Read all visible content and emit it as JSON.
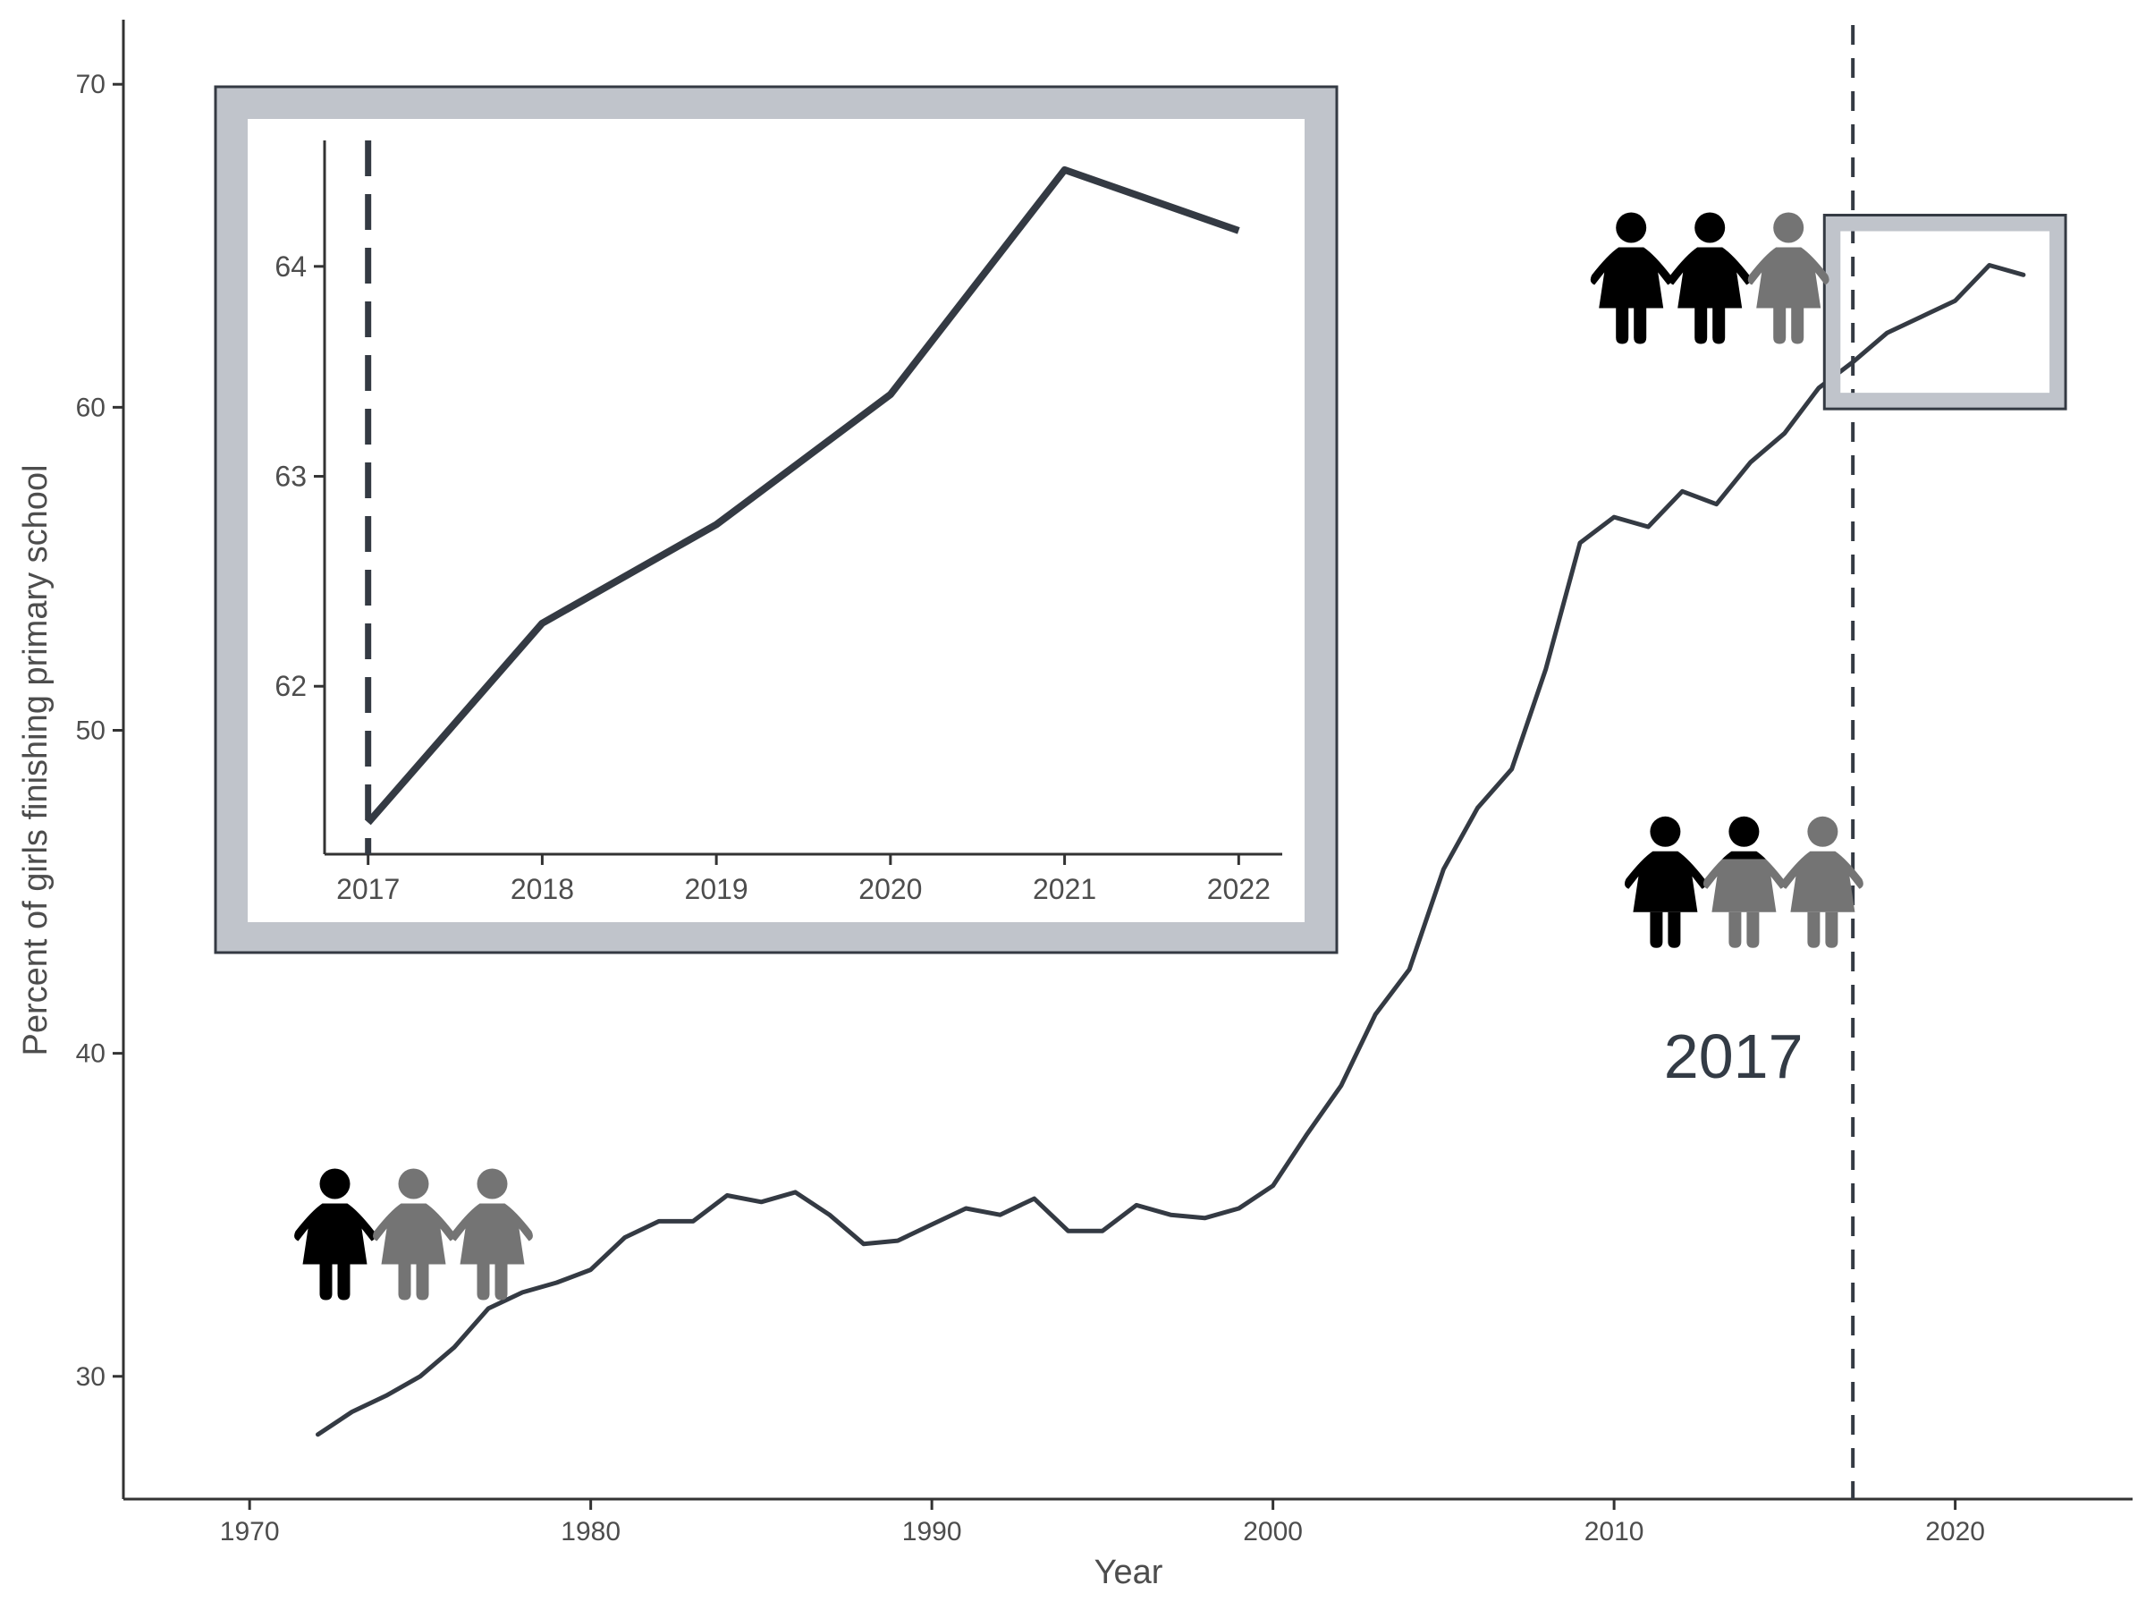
{
  "chart_data": {
    "type": "line",
    "xlabel": "Year",
    "ylabel": "Percent of girls finishing primary school",
    "xlim": [
      1966.3,
      2025.2
    ],
    "ylim": [
      26.2,
      72.0
    ],
    "x_ticks": [
      1970,
      1980,
      1990,
      2000,
      2010,
      2020
    ],
    "y_ticks": [
      30,
      40,
      50,
      60,
      70
    ],
    "grid": false,
    "line_color": "#343a43",
    "series": [
      {
        "x": [
          1972,
          1973,
          1974,
          1975,
          1976,
          1977,
          1978,
          1979,
          1980,
          1981,
          1982,
          1983,
          1984,
          1985,
          1986,
          1987,
          1988,
          1989,
          1990,
          1991,
          1992,
          1993,
          1994,
          1995,
          1996,
          1997,
          1998,
          1999,
          2000,
          2001,
          2002,
          2003,
          2004,
          2005,
          2006,
          2007,
          2008,
          2009,
          2010,
          2011,
          2012,
          2013,
          2014,
          2015,
          2016,
          2017,
          2018,
          2019,
          2020,
          2021,
          2022
        ],
        "y": [
          28.2,
          28.9,
          29.4,
          30.0,
          30.9,
          32.1,
          32.6,
          32.9,
          33.3,
          34.3,
          34.8,
          34.8,
          35.6,
          35.4,
          35.7,
          35.0,
          34.1,
          34.2,
          34.7,
          35.2,
          35.0,
          35.5,
          34.5,
          34.5,
          35.3,
          35.0,
          34.9,
          35.2,
          35.9,
          37.5,
          39.0,
          41.2,
          42.6,
          45.7,
          47.6,
          48.8,
          51.9,
          55.8,
          56.6,
          56.3,
          57.4,
          57.0,
          58.3,
          59.2,
          60.6,
          61.4,
          62.3,
          62.8,
          63.3,
          64.4,
          64.1
        ]
      }
    ],
    "reference_line": {
      "x": 2017,
      "style": "dashed"
    },
    "annotation": {
      "text": "2017",
      "x": 2013.5,
      "y": 39.9
    },
    "zoom_box": {
      "x": [
        2016.4,
        2023.0
      ],
      "y": [
        60.2,
        65.7
      ]
    },
    "inset": {
      "xlim": [
        2016.75,
        2022.25
      ],
      "ylim": [
        61.2,
        64.6
      ],
      "x_ticks": [
        2017,
        2018,
        2019,
        2020,
        2021,
        2022
      ],
      "y_ticks": [
        62,
        63,
        64
      ],
      "x": [
        2017,
        2018,
        2019,
        2020,
        2021,
        2022
      ],
      "y": [
        61.35,
        62.3,
        62.77,
        63.39,
        64.46,
        64.17
      ],
      "reference_line": {
        "x": 2017,
        "style": "dashed"
      },
      "frame_color": "#c0c4cb"
    },
    "pictograms": [
      {
        "x": 1972.5,
        "y": 34.3,
        "icons": [
          "filled",
          "empty",
          "empty"
        ]
      },
      {
        "x": 2011.5,
        "y": 45.2,
        "icons": [
          "filled",
          "half",
          "empty"
        ]
      },
      {
        "x": 2010.5,
        "y": 63.9,
        "icons": [
          "filled",
          "filled",
          "empty"
        ]
      }
    ],
    "icon_colors": {
      "filled": "#000000",
      "empty": "#747474"
    }
  }
}
